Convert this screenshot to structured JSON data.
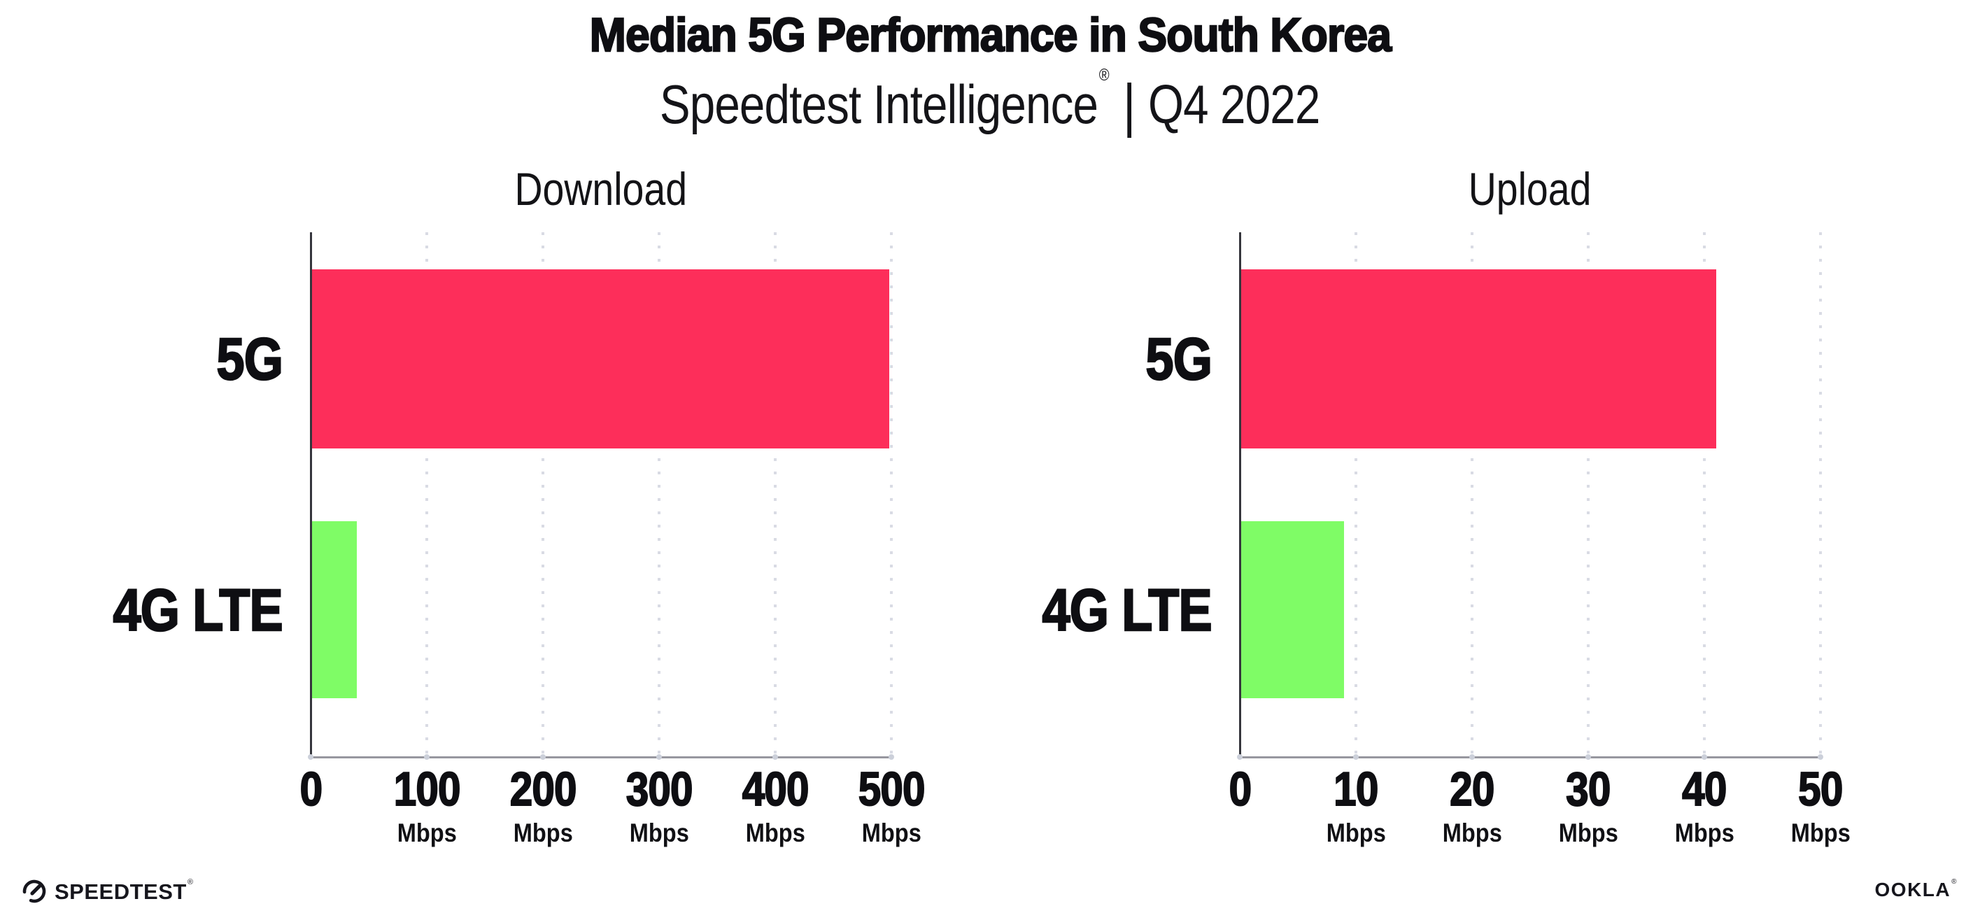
{
  "header": {
    "title": "Median 5G Performance in South Korea",
    "subtitle_product": "Speedtest Intelligence",
    "subtitle_registered": "®",
    "subtitle_separator": "|",
    "subtitle_period": "Q4 2022"
  },
  "footer": {
    "speedtest_label": "SPEEDTEST",
    "speedtest_mark": "®",
    "speedtest_icon": "speedtest-gauge-icon",
    "ookla_label": "OOKLA",
    "ookla_mark": "®"
  },
  "colors": {
    "bar_5g": "#fd2e5a",
    "bar_4g_lte": "#7ffc66",
    "gridline": "#d9dbe4",
    "x_axis_line": "#97979f",
    "y_axis_line": "#35353c",
    "text": "#0e0e12",
    "background": "#ffffff"
  },
  "chart_data": [
    {
      "type": "bar",
      "orientation": "horizontal",
      "title": "Download",
      "categories": [
        "5G",
        "4G LTE"
      ],
      "values": [
        498,
        40
      ],
      "unit": "Mbps",
      "xlim": [
        0,
        500
      ],
      "xticks": [
        0,
        100,
        200,
        300,
        400,
        500
      ],
      "tick_unit_label": "Mbps",
      "bar_colors": [
        "#fd2e5a",
        "#7ffc66"
      ],
      "grid": "vertical-dotted",
      "legend": "none",
      "data_labels": "none"
    },
    {
      "type": "bar",
      "orientation": "horizontal",
      "title": "Upload",
      "categories": [
        "5G",
        "4G LTE"
      ],
      "values": [
        41,
        9
      ],
      "unit": "Mbps",
      "xlim": [
        0,
        50
      ],
      "xticks": [
        0,
        10,
        20,
        30,
        40,
        50
      ],
      "tick_unit_label": "Mbps",
      "bar_colors": [
        "#fd2e5a",
        "#7ffc66"
      ],
      "grid": "vertical-dotted",
      "legend": "none",
      "data_labels": "none"
    }
  ]
}
